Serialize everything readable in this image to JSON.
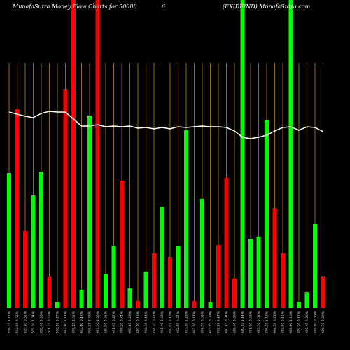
{
  "chart_data": {
    "type": "bar",
    "title_parts": [
      "MunafaSutra  Money Flow  Charts for 50008",
      "6",
      "(EXIDEIND) MunafaSutra.com"
    ],
    "categories": [
      "496.35 1.21%",
      "502.90 0.65%",
      "499.10 0.81%",
      "505.20 1.04%",
      "498.40 0.33%",
      "501.75 0.52%",
      "500.10 0.27%",
      "497.80 1.12%",
      "490.25 2.31%",
      "493.60 0.42%",
      "495.15 0.88%",
      "487.30 2.05%",
      "489.90 0.61%",
      "491.45 0.37%",
      "488.20 0.74%",
      "490.65 0.29%",
      "489.10 0.15%",
      "490.30 0.44%",
      "488.75 0.22%",
      "491.40 0.68%",
      "490.05 0.18%",
      "492.55 0.57%",
      "493.80 1.25%",
      "492.10 0.12%",
      "494.35 0.63%",
      "493.95 0.09%",
      "492.60 0.47%",
      "490.85 0.92%",
      "486.40 0.35%",
      "480.15 2.44%",
      "481.90 0.58%",
      "483.70 0.61%",
      "486.25 1.18%",
      "484.50 0.73%",
      "482.95 0.41%",
      "488.60 2.16%",
      "489.20 0.11%",
      "490.45 0.26%",
      "488.90 0.66%",
      "486.70 0.39%"
    ],
    "values": [
      193,
      284,
      110,
      161,
      195,
      45,
      8,
      313,
      500,
      26,
      275,
      500,
      48,
      89,
      182,
      28,
      10,
      52,
      78,
      145,
      73,
      88,
      254,
      10,
      156,
      8,
      90,
      186,
      42,
      500,
      99,
      102,
      269,
      143,
      78,
      500,
      9,
      23,
      120,
      45
    ],
    "bar_colors": [
      "#00ff00",
      "#ff0000",
      "#ff0000",
      "#00ff00",
      "#00ff00",
      "#ff0000",
      "#00ff00",
      "#ff0000",
      "#ff0000",
      "#00ff00",
      "#00ff00",
      "#ff0000",
      "#00ff00",
      "#00ff00",
      "#ff0000",
      "#00ff00",
      "#ff0000",
      "#00ff00",
      "#ff0000",
      "#00ff00",
      "#ff0000",
      "#00ff00",
      "#00ff00",
      "#ff0000",
      "#00ff00",
      "#00ff00",
      "#ff0000",
      "#ff0000",
      "#ff0000",
      "#00ff00",
      "#00ff00",
      "#00ff00",
      "#00ff00",
      "#ff0000",
      "#ff0000",
      "#00ff00",
      "#00ff00",
      "#00ff00",
      "#00ff00",
      "#ff0000"
    ],
    "line_values": [
      280,
      277,
      274,
      272,
      278,
      281,
      280,
      280,
      270,
      260,
      260,
      262,
      259,
      260,
      259,
      260,
      257,
      258,
      256,
      258,
      256,
      259,
      258,
      259,
      260,
      259,
      259,
      258,
      253,
      244,
      242,
      244,
      247,
      253,
      258,
      259,
      254,
      259,
      258,
      252
    ],
    "line_color": "#ffffff",
    "grid_color": "#b8860b"
  }
}
